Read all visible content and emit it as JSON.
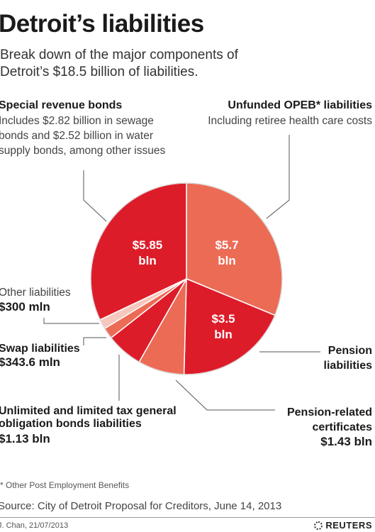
{
  "title": "Detroit’s liabilities",
  "subtitle": "Break down of the major components of Detroit’s $18.5 billion of liabilities.",
  "labels": {
    "special": {
      "name": "Special revenue bonds",
      "desc": "Includes $2.82 billion in sewage bonds and $2.52 billion in water supply bonds, among other issues"
    },
    "opeb": {
      "name": "Unfunded OPEB* liabilities",
      "desc": "Including retiree health care costs"
    },
    "other": {
      "name": "Other liabilities",
      "value": "$300 mln"
    },
    "swap": {
      "name": "Swap liabilities",
      "value": "$343.6 mln"
    },
    "utgo": {
      "name": "Unlimited and limited tax general obligation bonds liabilities",
      "value": "$1.13 bln"
    },
    "pension": {
      "name": "Pension liabilities"
    },
    "pension_related": {
      "name": "Pension-related certificates",
      "value": "$1.43 bln"
    }
  },
  "chart_data": {
    "type": "pie",
    "unit": "$ billion",
    "slices": [
      {
        "name": "Unfunded OPEB* liabilities",
        "value": 5.7,
        "label": "$5.7 bln",
        "color": "#ec6b55"
      },
      {
        "name": "Pension liabilities",
        "value": 3.5,
        "label": "$3.5 bln",
        "color": "#dd1c2a"
      },
      {
        "name": "Pension-related certificates",
        "value": 1.43,
        "color": "#ec6b55"
      },
      {
        "name": "Unlimited and limited tax general obligation bonds liabilities",
        "value": 1.13,
        "color": "#dd1c2a"
      },
      {
        "name": "Swap liabilities",
        "value": 0.3436,
        "color": "#ec6b55"
      },
      {
        "name": "Other liabilities",
        "value": 0.3,
        "color": "#f7c7bd"
      },
      {
        "name": "Special revenue bonds",
        "value": 5.85,
        "label": "$5.85 bln",
        "color": "#dd1c2a"
      }
    ]
  },
  "footnote": "* Other Post Employment Benefits",
  "source": "Source: City of Detroit Proposal for Creditors, June 14, 2013",
  "credit": "J. Chan, 21/07/2013",
  "brand": "REUTERS"
}
